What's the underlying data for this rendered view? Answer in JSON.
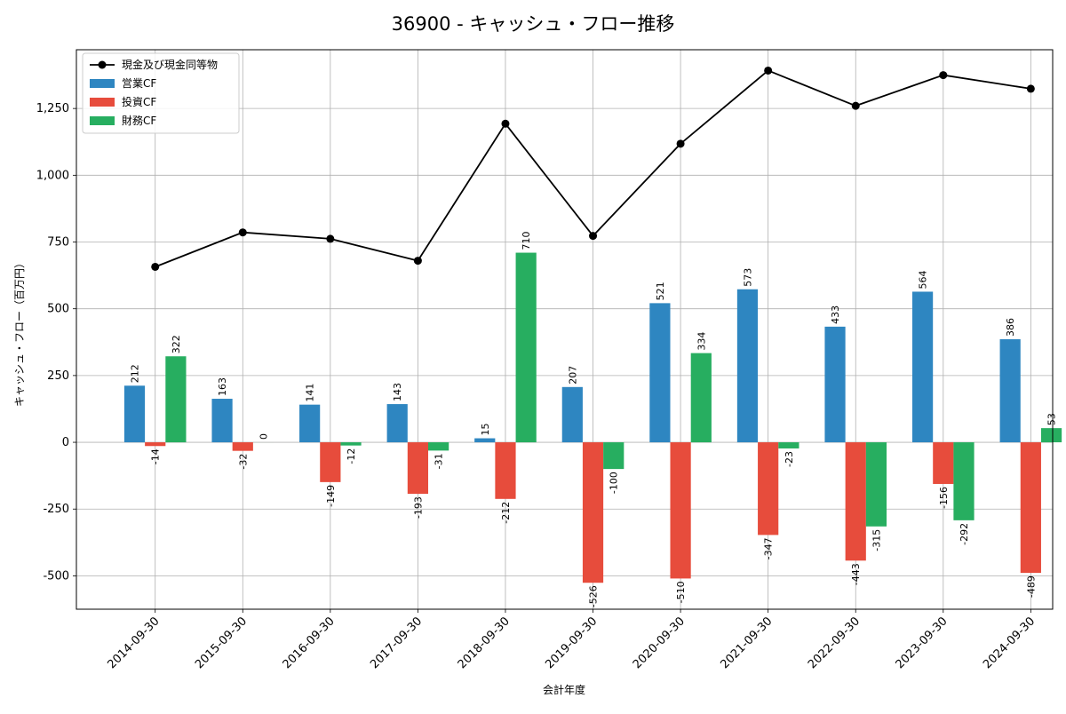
{
  "chart_data": {
    "type": "bar",
    "title": "36900 - キャッシュ・フロー推移",
    "xlabel": "会計年度",
    "ylabel": "キャッシュ・フロー（百万円）",
    "ylim": [
      -625,
      1470
    ],
    "yticks": [
      -500,
      -250,
      0,
      250,
      500,
      750,
      1000,
      1250
    ],
    "ytick_labels": [
      "-500",
      "-250",
      "0",
      "250",
      "500",
      "750",
      "1,000",
      "1,250"
    ],
    "grid": true,
    "legend_position": "top-left",
    "categories": [
      "2014-09-30",
      "2015-09-30",
      "2016-09-30",
      "2017-09-30",
      "2018-09-30",
      "2019-09-30",
      "2020-09-30",
      "2021-09-30",
      "2022-09-30",
      "2023-09-30",
      "2024-09-30"
    ],
    "series": [
      {
        "name": "営業CF",
        "kind": "bar",
        "color": "#2e86c1",
        "values": [
          212,
          163,
          141,
          143,
          15,
          207,
          521,
          573,
          433,
          564,
          386
        ]
      },
      {
        "name": "投資CF",
        "kind": "bar",
        "color": "#e74c3c",
        "values": [
          -14,
          -32,
          -149,
          -193,
          -212,
          -526,
          -510,
          -347,
          -443,
          -156,
          -489
        ]
      },
      {
        "name": "財務CF",
        "kind": "bar",
        "color": "#27ae60",
        "values": [
          322,
          0,
          -12,
          -31,
          710,
          -100,
          334,
          -23,
          -315,
          -292,
          53
        ]
      },
      {
        "name": "現金及び現金同等物",
        "kind": "line",
        "color": "#000000",
        "values": [
          657,
          786,
          762,
          680,
          1193,
          773,
          1118,
          1392,
          1260,
          1375,
          1324
        ]
      }
    ]
  }
}
